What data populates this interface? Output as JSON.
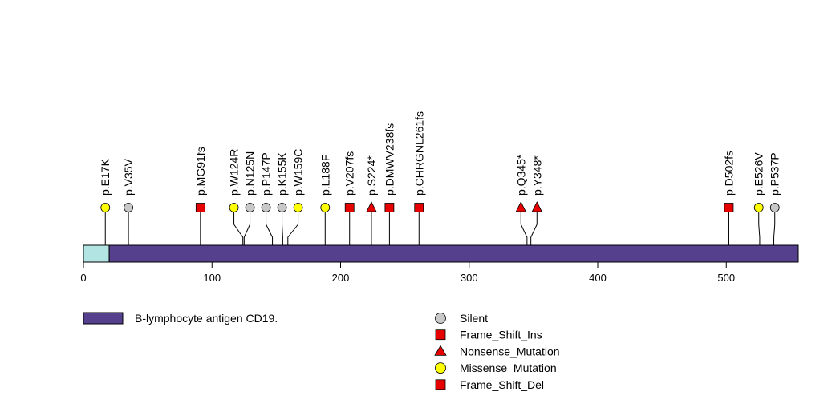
{
  "chart_data": {
    "type": "lollipop",
    "xlim": [
      0,
      556
    ],
    "x_ticks": [
      0,
      100,
      200,
      300,
      400,
      500
    ],
    "protein_length": 556,
    "domains": [
      {
        "name": "B-lymphocyte antigen CD19.",
        "start": 20,
        "end": 556,
        "color": "#55408e"
      }
    ],
    "leading_region": {
      "start": 0,
      "end": 20,
      "color": "#b3e4e4"
    },
    "mutation_types": {
      "Silent": {
        "shape": "circle",
        "color": "#c8c8c8"
      },
      "Frame_Shift_Ins": {
        "shape": "square",
        "color": "#e60000"
      },
      "Nonsense_Mutation": {
        "shape": "triangle",
        "color": "#e60000"
      },
      "Missense_Mutation": {
        "shape": "circle",
        "color": "#ffff00"
      },
      "Frame_Shift_Del": {
        "shape": "square",
        "color": "#e60000"
      }
    },
    "mutations": [
      {
        "label": "p.E17K",
        "pos": 17,
        "type": "Missense_Mutation"
      },
      {
        "label": "p.V35V",
        "pos": 35,
        "type": "Silent"
      },
      {
        "label": "p.MG91fs",
        "pos": 91,
        "type": "Frame_Shift_Ins"
      },
      {
        "label": "p.W124R",
        "pos": 124,
        "type": "Missense_Mutation"
      },
      {
        "label": "p.N125N",
        "pos": 125,
        "type": "Silent"
      },
      {
        "label": "p.P147P",
        "pos": 147,
        "type": "Silent"
      },
      {
        "label": "p.K155K",
        "pos": 155,
        "type": "Silent"
      },
      {
        "label": "p.W159C",
        "pos": 159,
        "type": "Missense_Mutation"
      },
      {
        "label": "p.L188F",
        "pos": 188,
        "type": "Missense_Mutation"
      },
      {
        "label": "p.V207fs",
        "pos": 207,
        "type": "Frame_Shift_Del"
      },
      {
        "label": "p.S224*",
        "pos": 224,
        "type": "Nonsense_Mutation"
      },
      {
        "label": "p.DMWV238fs",
        "pos": 238,
        "type": "Frame_Shift_Ins"
      },
      {
        "label": "p.CHRGNL261fs",
        "pos": 261,
        "type": "Frame_Shift_Del"
      },
      {
        "label": "p.Q345*",
        "pos": 345,
        "type": "Nonsense_Mutation"
      },
      {
        "label": "p.Y348*",
        "pos": 348,
        "type": "Nonsense_Mutation"
      },
      {
        "label": "p.D502fs",
        "pos": 502,
        "type": "Frame_Shift_Del"
      },
      {
        "label": "p.E526V",
        "pos": 526,
        "type": "Missense_Mutation"
      },
      {
        "label": "p.P537P",
        "pos": 537,
        "type": "Silent"
      }
    ],
    "legend": {
      "domain_entries": [
        "B-lymphocyte antigen CD19."
      ],
      "type_entries": [
        "Silent",
        "Frame_Shift_Ins",
        "Nonsense_Mutation",
        "Missense_Mutation",
        "Frame_Shift_Del"
      ]
    }
  }
}
